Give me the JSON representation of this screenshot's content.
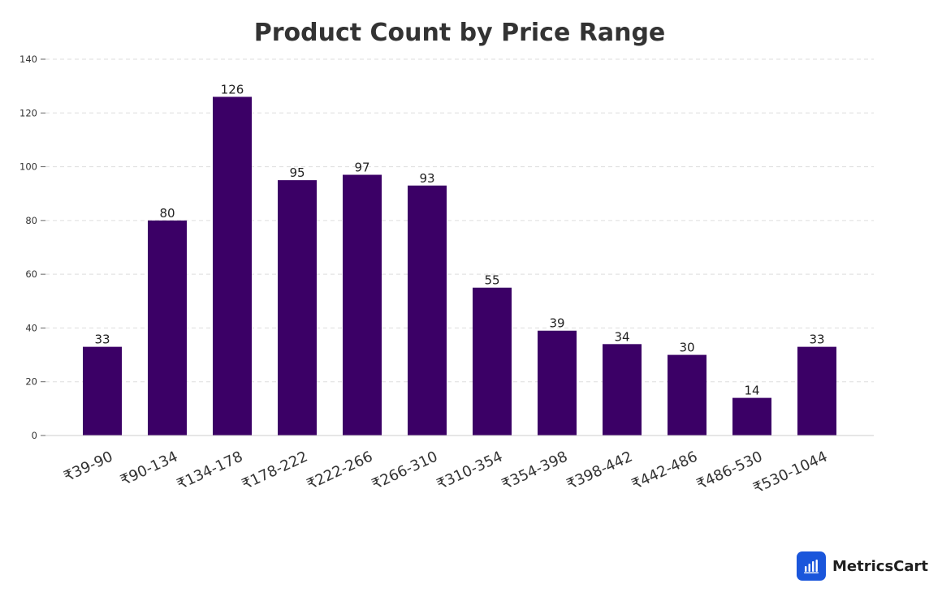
{
  "chart_data": {
    "type": "bar",
    "title": "Product Count by Price Range",
    "xlabel": "",
    "ylabel": "",
    "categories": [
      "₹39-90",
      "₹90-134",
      "₹134-178",
      "₹178-222",
      "₹222-266",
      "₹266-310",
      "₹310-354",
      "₹354-398",
      "₹398-442",
      "₹442-486",
      "₹486-530",
      "₹530-1044"
    ],
    "values": [
      33,
      80,
      126,
      95,
      97,
      93,
      55,
      39,
      34,
      30,
      14,
      33
    ],
    "ylim": [
      0,
      140
    ],
    "yticks": [
      0,
      20,
      40,
      60,
      80,
      100,
      120,
      140
    ],
    "grid": true,
    "bar_color": "#3b0066"
  },
  "branding": {
    "logo_text": "MetricsCart",
    "logo_color": "#1a56db"
  }
}
